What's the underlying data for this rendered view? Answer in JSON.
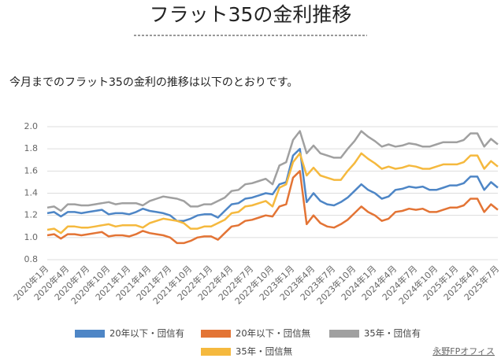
{
  "heading": "フラット35の金利推移",
  "intro": "今月までのフラット35の金利の推移は以下のとおりです。",
  "credit": "永野FPオフィス",
  "chart_data": {
    "type": "line",
    "categories": [
      "2020年1月",
      null,
      null,
      "2020年4月",
      null,
      null,
      "2020年7月",
      null,
      null,
      "2020年10月",
      null,
      null,
      "2021年1月",
      null,
      null,
      "2021年4月",
      null,
      null,
      "2021年7月",
      null,
      null,
      "2021年10月",
      null,
      null,
      "2022年1月",
      null,
      null,
      "2022年4月",
      null,
      null,
      "2022年7月",
      null,
      null,
      "2022年10月",
      null,
      null,
      "2023年1月",
      null,
      null,
      "2023年4月",
      null,
      null,
      "2023年7月",
      null,
      null,
      "2023年10月",
      null,
      null,
      "2024年1月",
      null,
      null,
      "2024年4月",
      null,
      null,
      "2024年7月",
      null,
      null,
      "2024年10月",
      null,
      null,
      "2025年1月",
      null,
      null,
      "2025年4月",
      null,
      null,
      "2025年7月"
    ],
    "series": [
      {
        "name": "20年以下・団信有",
        "color": "#4e86c6",
        "values": [
          1.22,
          1.23,
          1.19,
          1.23,
          1.23,
          1.22,
          1.23,
          1.24,
          1.25,
          1.21,
          1.22,
          1.22,
          1.21,
          1.23,
          1.26,
          1.24,
          1.23,
          1.22,
          1.2,
          1.15,
          1.15,
          1.17,
          1.2,
          1.21,
          1.21,
          1.18,
          1.24,
          1.3,
          1.31,
          1.35,
          1.36,
          1.38,
          1.4,
          1.39,
          1.48,
          1.5,
          1.74,
          1.8,
          1.32,
          1.4,
          1.33,
          1.3,
          1.29,
          1.32,
          1.36,
          1.42,
          1.48,
          1.43,
          1.4,
          1.35,
          1.37,
          1.43,
          1.44,
          1.46,
          1.45,
          1.46,
          1.43,
          1.43,
          1.45,
          1.47,
          1.47,
          1.49,
          1.55,
          1.55,
          1.43,
          1.5,
          1.45
        ]
      },
      {
        "name": "20年以下・団信無",
        "color": "#e37435",
        "values": [
          1.02,
          1.03,
          0.99,
          1.03,
          1.03,
          1.02,
          1.03,
          1.04,
          1.05,
          1.01,
          1.02,
          1.02,
          1.01,
          1.03,
          1.06,
          1.04,
          1.03,
          1.02,
          1.0,
          0.95,
          0.95,
          0.97,
          1.0,
          1.01,
          1.01,
          0.98,
          1.04,
          1.1,
          1.11,
          1.15,
          1.16,
          1.18,
          1.2,
          1.19,
          1.28,
          1.3,
          1.54,
          1.6,
          1.12,
          1.2,
          1.13,
          1.1,
          1.09,
          1.12,
          1.16,
          1.22,
          1.28,
          1.23,
          1.2,
          1.15,
          1.17,
          1.23,
          1.24,
          1.26,
          1.25,
          1.26,
          1.23,
          1.23,
          1.25,
          1.27,
          1.27,
          1.29,
          1.35,
          1.35,
          1.23,
          1.3,
          1.25
        ]
      },
      {
        "name": "35年・団信有",
        "color": "#a0a0a0",
        "values": [
          1.27,
          1.28,
          1.24,
          1.3,
          1.3,
          1.29,
          1.29,
          1.3,
          1.31,
          1.32,
          1.3,
          1.31,
          1.31,
          1.31,
          1.29,
          1.33,
          1.35,
          1.37,
          1.36,
          1.35,
          1.33,
          1.28,
          1.28,
          1.3,
          1.3,
          1.33,
          1.36,
          1.42,
          1.43,
          1.48,
          1.49,
          1.51,
          1.53,
          1.48,
          1.65,
          1.68,
          1.88,
          1.96,
          1.76,
          1.83,
          1.76,
          1.74,
          1.72,
          1.72,
          1.8,
          1.87,
          1.96,
          1.91,
          1.87,
          1.82,
          1.84,
          1.82,
          1.83,
          1.85,
          1.84,
          1.82,
          1.82,
          1.84,
          1.86,
          1.86,
          1.86,
          1.88,
          1.94,
          1.94,
          1.82,
          1.89,
          1.84
        ]
      },
      {
        "name": "35年・団信無",
        "color": "#f5b93e",
        "values": [
          1.07,
          1.08,
          1.04,
          1.1,
          1.1,
          1.09,
          1.09,
          1.1,
          1.11,
          1.12,
          1.1,
          1.11,
          1.11,
          1.11,
          1.09,
          1.13,
          1.15,
          1.17,
          1.16,
          1.15,
          1.13,
          1.08,
          1.08,
          1.1,
          1.1,
          1.13,
          1.16,
          1.22,
          1.23,
          1.28,
          1.29,
          1.31,
          1.33,
          1.28,
          1.45,
          1.48,
          1.68,
          1.76,
          1.56,
          1.63,
          1.56,
          1.54,
          1.52,
          1.52,
          1.6,
          1.67,
          1.76,
          1.71,
          1.67,
          1.62,
          1.64,
          1.62,
          1.63,
          1.65,
          1.64,
          1.62,
          1.62,
          1.64,
          1.66,
          1.66,
          1.66,
          1.68,
          1.74,
          1.74,
          1.62,
          1.69,
          1.64
        ]
      }
    ],
    "ylim": [
      0.8,
      2.0
    ],
    "yticks": [
      0.8,
      {
        "value": 1,
        "label": "1.0"
      },
      1.2,
      1.4,
      1.6,
      1.8,
      {
        "value": 2,
        "label": "2.0"
      }
    ],
    "grid": true,
    "legend": "bottom"
  }
}
